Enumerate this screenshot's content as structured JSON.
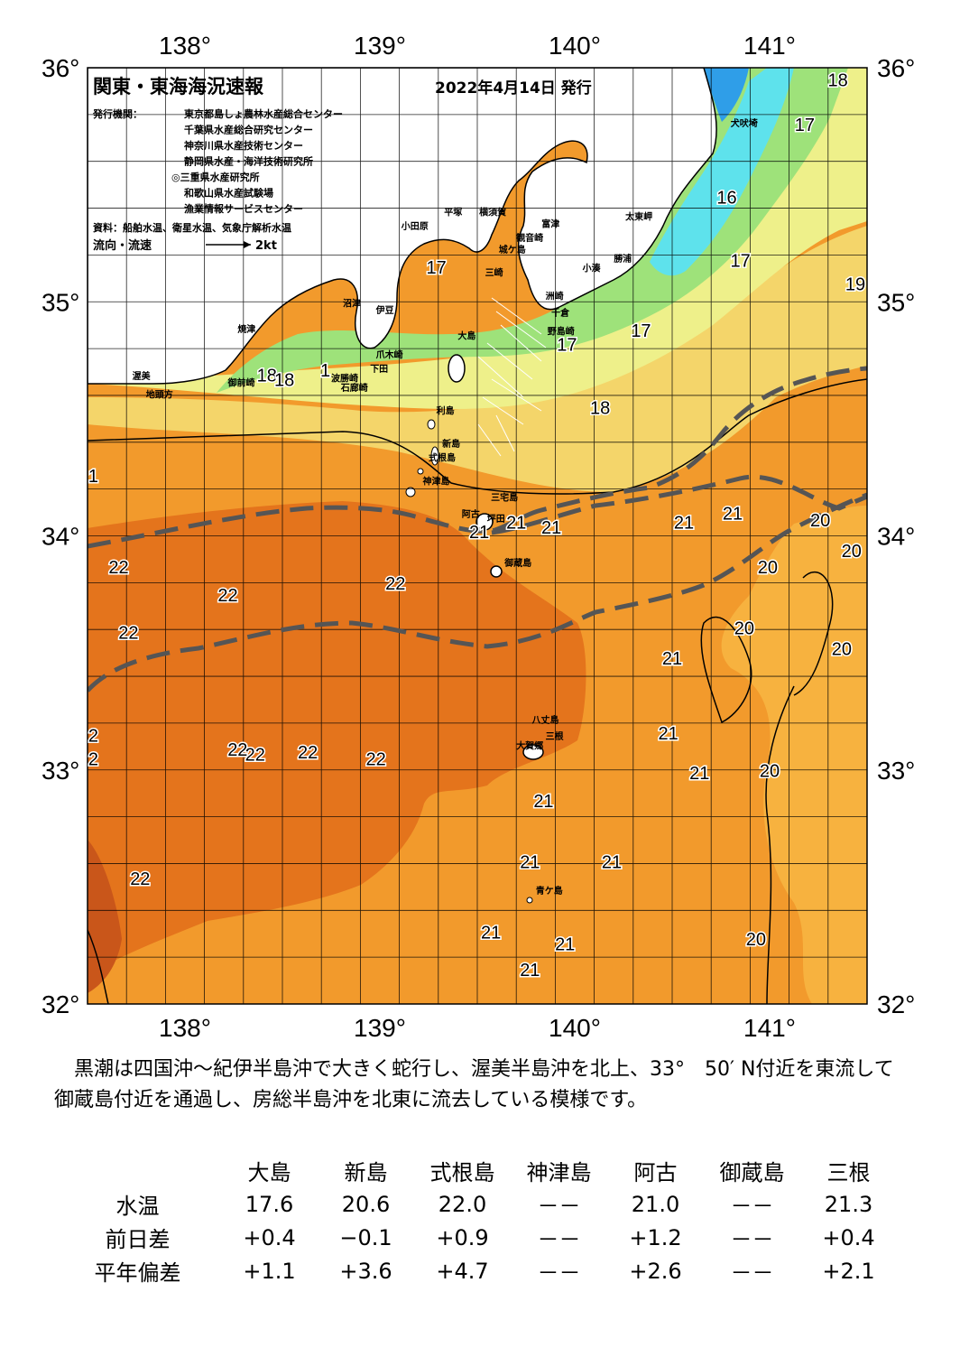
{
  "header": {
    "title": "関東・東海海況速報",
    "date": "2022年4月14日 発行",
    "issuer_label": "発行機関：",
    "issuers": [
      "東京都島しょ農林水産総合センター",
      "千葉県水産総合研究センター",
      "神奈川県水産技術センター",
      "静岡県水産・海洋技術研究所",
      "◎三重県水産研究所",
      "和歌山県水産試験場",
      "漁業情報サービスセンター"
    ],
    "source": "資料：船舶水温、衛星水温、気象庁解析水温",
    "flow_legend": "流向・流速",
    "flow_scale": "2kt"
  },
  "map": {
    "lon_labels": [
      "138°",
      "139°",
      "140°",
      "141°"
    ],
    "lat_labels": [
      "36°",
      "35°",
      "34°",
      "33°",
      "32°"
    ],
    "lon_range": [
      137.5,
      141.5
    ],
    "lat_range": [
      32.0,
      36.0
    ],
    "colors": {
      "sea_22": "#e4741c",
      "sea_21": "#f29a2c",
      "sea_20": "#f7b23f",
      "sea_19": "#f4d56a",
      "sea_18": "#eef08a",
      "sea_17": "#9ee27a",
      "sea_16": "#5ee2ec",
      "sea_15": "#2f9ee8",
      "land": "#ffffff",
      "kuroshio_axis": "#555555"
    },
    "isotherm_labels": [
      {
        "text": "18",
        "lon": 141.35,
        "lat": 35.92
      },
      {
        "text": "17",
        "lon": 141.18,
        "lat": 35.73
      },
      {
        "text": "16",
        "lon": 140.78,
        "lat": 35.42
      },
      {
        "text": "17",
        "lon": 140.85,
        "lat": 35.15
      },
      {
        "text": "19",
        "lon": 141.44,
        "lat": 35.05
      },
      {
        "text": "17",
        "lon": 139.29,
        "lat": 35.12
      },
      {
        "text": "17",
        "lon": 140.34,
        "lat": 34.85
      },
      {
        "text": "17",
        "lon": 139.96,
        "lat": 34.79
      },
      {
        "text": "18",
        "lon": 138.42,
        "lat": 34.66
      },
      {
        "text": "18",
        "lon": 138.51,
        "lat": 34.64
      },
      {
        "text": "18",
        "lon": 140.13,
        "lat": 34.52
      },
      {
        "text": "21",
        "lon": 140.56,
        "lat": 34.03
      },
      {
        "text": "21",
        "lon": 140.81,
        "lat": 34.07
      },
      {
        "text": "21",
        "lon": 139.7,
        "lat": 34.03
      },
      {
        "text": "21",
        "lon": 139.88,
        "lat": 34.01
      },
      {
        "text": "21",
        "lon": 139.51,
        "lat": 33.99
      },
      {
        "text": "20",
        "lon": 141.26,
        "lat": 34.04
      },
      {
        "text": "20",
        "lon": 141.42,
        "lat": 33.91
      },
      {
        "text": "20",
        "lon": 140.99,
        "lat": 33.84
      },
      {
        "text": "20",
        "lon": 140.87,
        "lat": 33.58
      },
      {
        "text": "20",
        "lon": 141.37,
        "lat": 33.49
      },
      {
        "text": "22",
        "lon": 137.66,
        "lat": 33.84
      },
      {
        "text": "22",
        "lon": 138.22,
        "lat": 33.72
      },
      {
        "text": "22",
        "lon": 137.71,
        "lat": 33.56
      },
      {
        "text": "22",
        "lon": 139.08,
        "lat": 33.77
      },
      {
        "text": "21",
        "lon": 140.5,
        "lat": 33.45
      },
      {
        "text": "21",
        "lon": 140.48,
        "lat": 33.13
      },
      {
        "text": "21",
        "lon": 140.64,
        "lat": 32.96
      },
      {
        "text": "20",
        "lon": 141.0,
        "lat": 32.97
      },
      {
        "text": "22",
        "lon": 138.27,
        "lat": 33.06
      },
      {
        "text": "22",
        "lon": 138.36,
        "lat": 33.04
      },
      {
        "text": "22",
        "lon": 138.63,
        "lat": 33.05
      },
      {
        "text": "22",
        "lon": 138.98,
        "lat": 33.02
      },
      {
        "text": "21",
        "lon": 139.84,
        "lat": 32.84
      },
      {
        "text": "21",
        "lon": 139.77,
        "lat": 32.58
      },
      {
        "text": "21",
        "lon": 140.19,
        "lat": 32.58
      },
      {
        "text": "22",
        "lon": 137.77,
        "lat": 32.51
      },
      {
        "text": "21",
        "lon": 139.57,
        "lat": 32.28
      },
      {
        "text": "21",
        "lon": 139.95,
        "lat": 32.23
      },
      {
        "text": "21",
        "lon": 139.77,
        "lat": 32.12
      },
      {
        "text": "20",
        "lon": 140.93,
        "lat": 32.25
      },
      {
        "text": "1",
        "lon": 137.53,
        "lat": 34.23
      },
      {
        "text": "1",
        "lon": 138.72,
        "lat": 34.68
      },
      {
        "text": "2",
        "lon": 137.53,
        "lat": 33.12
      },
      {
        "text": "2",
        "lon": 137.53,
        "lat": 33.02
      }
    ],
    "places": [
      {
        "text": "犬吠埼",
        "lon": 140.8,
        "lat": 35.75
      },
      {
        "text": "太東岬",
        "lon": 140.26,
        "lat": 35.35
      },
      {
        "text": "勝浦",
        "lon": 140.2,
        "lat": 35.17
      },
      {
        "text": "小湊",
        "lon": 140.04,
        "lat": 35.13
      },
      {
        "text": "富津",
        "lon": 139.83,
        "lat": 35.32
      },
      {
        "text": "観音崎",
        "lon": 139.7,
        "lat": 35.26
      },
      {
        "text": "城ケ島",
        "lon": 139.61,
        "lat": 35.21
      },
      {
        "text": "三崎",
        "lon": 139.54,
        "lat": 35.11
      },
      {
        "text": "平塚",
        "lon": 139.33,
        "lat": 35.37
      },
      {
        "text": "横須賀",
        "lon": 139.51,
        "lat": 35.37
      },
      {
        "text": "小田原",
        "lon": 139.11,
        "lat": 35.31
      },
      {
        "text": "洲崎",
        "lon": 139.85,
        "lat": 35.01
      },
      {
        "text": "千倉",
        "lon": 139.88,
        "lat": 34.94
      },
      {
        "text": "野島崎",
        "lon": 139.86,
        "lat": 34.86
      },
      {
        "text": "沼津",
        "lon": 138.81,
        "lat": 34.98
      },
      {
        "text": "伊豆",
        "lon": 138.98,
        "lat": 34.95
      },
      {
        "text": "大島",
        "lon": 139.4,
        "lat": 34.84
      },
      {
        "text": "爪木崎",
        "lon": 138.98,
        "lat": 34.76
      },
      {
        "text": "下田",
        "lon": 138.95,
        "lat": 34.7
      },
      {
        "text": "焼津",
        "lon": 138.27,
        "lat": 34.87
      },
      {
        "text": "御前崎",
        "lon": 138.22,
        "lat": 34.64
      },
      {
        "text": "波勝崎",
        "lon": 138.75,
        "lat": 34.66
      },
      {
        "text": "石廊崎",
        "lon": 138.8,
        "lat": 34.62
      },
      {
        "text": "渥美",
        "lon": 137.73,
        "lat": 34.67
      },
      {
        "text": "地頭方",
        "lon": 137.8,
        "lat": 34.59
      },
      {
        "text": "利島",
        "lon": 139.29,
        "lat": 34.52
      },
      {
        "text": "新島",
        "lon": 139.32,
        "lat": 34.38
      },
      {
        "text": "式根島",
        "lon": 139.25,
        "lat": 34.32
      },
      {
        "text": "神津島",
        "lon": 139.22,
        "lat": 34.22
      },
      {
        "text": "三宅島",
        "lon": 139.57,
        "lat": 34.15
      },
      {
        "text": "阿古",
        "lon": 139.42,
        "lat": 34.08
      },
      {
        "text": "坪田",
        "lon": 139.55,
        "lat": 34.06
      },
      {
        "text": "御蔵島",
        "lon": 139.64,
        "lat": 33.87
      },
      {
        "text": "八丈島",
        "lon": 139.78,
        "lat": 33.2
      },
      {
        "text": "大賀郷",
        "lon": 139.7,
        "lat": 33.09
      },
      {
        "text": "三根",
        "lon": 139.85,
        "lat": 33.13
      },
      {
        "text": "青ケ島",
        "lon": 139.8,
        "lat": 32.47
      }
    ]
  },
  "summary": "黒潮は四国沖～紀伊半島沖で大きく蛇行し、渥美半島沖を北上、33°　50′ N付近を東流して御蔵島付近を通過し、房総半島沖を北東に流去している模様です。",
  "observations": {
    "corner": "",
    "stations": [
      "大島",
      "新島",
      "式根島",
      "神津島",
      "阿古",
      "御蔵島",
      "三根"
    ],
    "rows": [
      {
        "label": "水温",
        "values": [
          "17.6",
          "20.6",
          "22.0",
          "－－",
          "21.0",
          "－－",
          "21.3"
        ]
      },
      {
        "label": "前日差",
        "values": [
          "+0.4",
          "−0.1",
          "+0.9",
          "－－",
          "+1.2",
          "－－",
          "+0.4"
        ]
      },
      {
        "label": "平年偏差",
        "values": [
          "+1.1",
          "+3.6",
          "+4.7",
          "－－",
          "+2.6",
          "－－",
          "+2.1"
        ]
      }
    ]
  }
}
